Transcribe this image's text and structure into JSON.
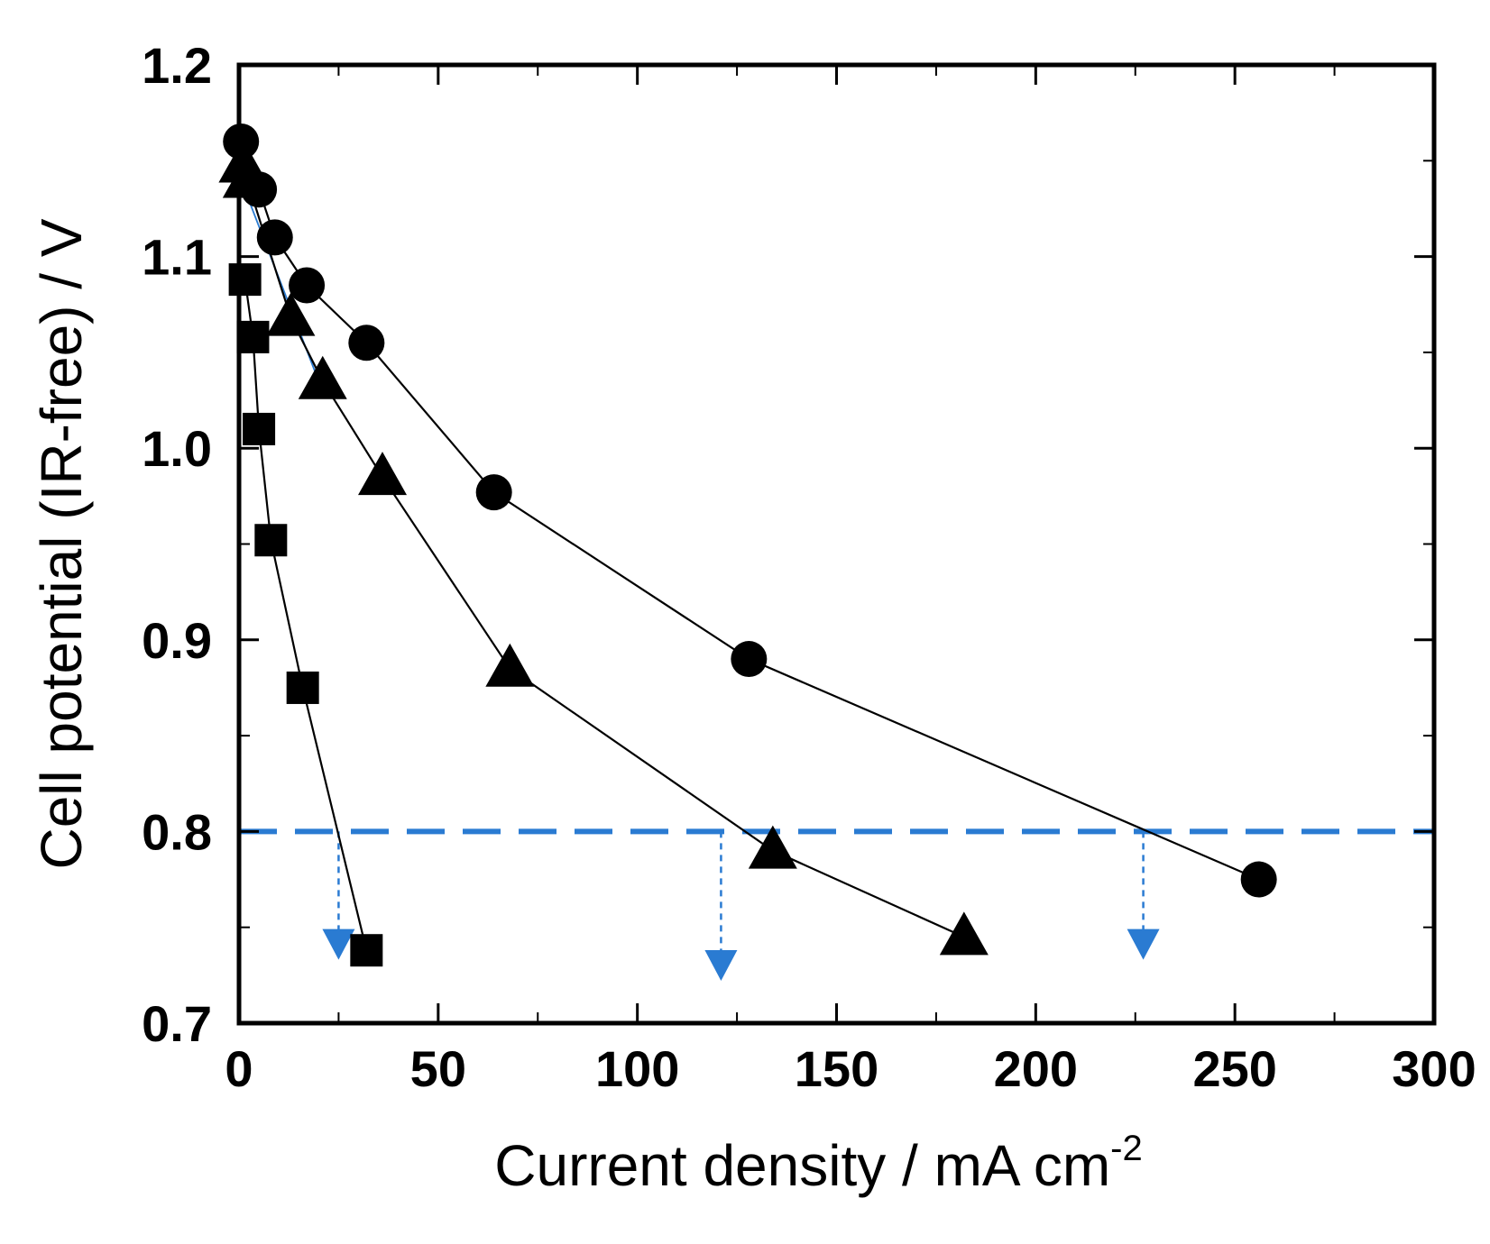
{
  "chart_data": {
    "type": "line",
    "xlabel": "Current density / mA cm",
    "xlabel_superscript": "-2",
    "ylabel": "Cell potential (IR-free) / V",
    "xlim": [
      0,
      300
    ],
    "ylim": [
      0.7,
      1.2
    ],
    "x_ticks": [
      "0",
      "50",
      "100",
      "150",
      "200",
      "250",
      "300"
    ],
    "y_ticks": [
      "0.7",
      "0.8",
      "0.9",
      "1.0",
      "1.1",
      "1.2"
    ],
    "series": [
      {
        "name": "circles",
        "marker": "circle",
        "x": [
          0.5,
          5,
          9,
          17,
          32,
          64,
          128,
          256
        ],
        "y": [
          1.16,
          1.135,
          1.11,
          1.085,
          1.055,
          0.977,
          0.89,
          0.775
        ]
      },
      {
        "name": "triangles",
        "marker": "triangle",
        "x": [
          1,
          2,
          13,
          21,
          36,
          68,
          134,
          182
        ],
        "y": [
          1.148,
          1.14,
          1.068,
          1.035,
          0.985,
          0.885,
          0.79,
          0.745
        ]
      },
      {
        "name": "squares",
        "marker": "square",
        "x": [
          1.5,
          3.5,
          5,
          8,
          16,
          32
        ],
        "y": [
          1.088,
          1.058,
          1.01,
          0.952,
          0.875,
          0.738
        ]
      }
    ],
    "reference_line": {
      "y": 0.8,
      "color": "#2a7bd2",
      "style": "dashed"
    },
    "drop_arrows": [
      {
        "x": 25,
        "y_from": 0.8,
        "y_to": 0.735
      },
      {
        "x": 121,
        "y_from": 0.8,
        "y_to": 0.724
      },
      {
        "x": 227,
        "y_from": 0.8,
        "y_to": 0.735
      }
    ],
    "fit_line": {
      "x": [
        0.5,
        20
      ],
      "y": [
        1.14,
        1.035
      ],
      "color": "#2a7bd2"
    }
  }
}
